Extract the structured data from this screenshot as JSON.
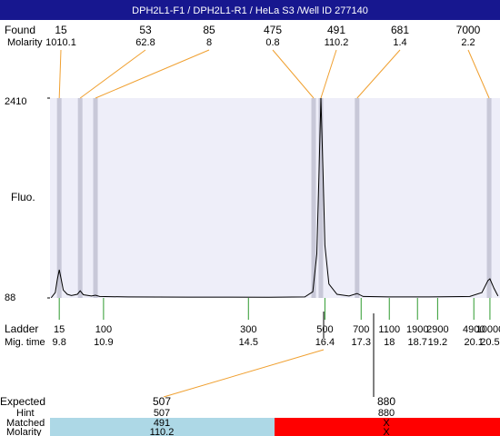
{
  "header": {
    "title": "DPH2L1-F1  / DPH2L1-R1  / HeLa S3 /Well ID 277140"
  },
  "found": {
    "label": "Found",
    "molarity_label": "Molarity",
    "peaks": [
      {
        "size": 15,
        "molarity": 1010.1,
        "migration_time": 9.8
      },
      {
        "size": 53,
        "molarity": 62.8,
        "migration_time": 10.32
      },
      {
        "size": 85,
        "molarity": 8,
        "migration_time": 10.7
      },
      {
        "size": 475,
        "molarity": 0.8,
        "migration_time": 16.12
      },
      {
        "size": 491,
        "molarity": 110.2,
        "migration_time": 16.3
      },
      {
        "size": 681,
        "molarity": 1.4,
        "migration_time": 17.2
      },
      {
        "size": 7000,
        "molarity": 2.2,
        "migration_time": 20.48
      }
    ]
  },
  "chart_data": {
    "type": "line",
    "ylabel": "Fluo.",
    "color": "#000000",
    "x": [
      9.6,
      9.7,
      9.75,
      9.8,
      9.85,
      9.9,
      10.0,
      10.1,
      10.25,
      10.32,
      10.4,
      10.6,
      10.7,
      10.8,
      11.5,
      13,
      15,
      15.9,
      16.1,
      16.2,
      16.25,
      16.3,
      16.35,
      16.4,
      16.5,
      16.7,
      17.0,
      17.2,
      17.35,
      18,
      19,
      20,
      20.3,
      20.45,
      20.5,
      20.6,
      20.7
    ],
    "values": [
      90,
      150,
      300,
      415,
      300,
      180,
      130,
      115,
      130,
      170,
      125,
      110,
      120,
      105,
      100,
      98,
      96,
      100,
      160,
      600,
      1500,
      2410,
      1600,
      700,
      250,
      130,
      110,
      140,
      105,
      100,
      100,
      105,
      150,
      290,
      310,
      200,
      110
    ],
    "xlim": [
      9.57,
      20.75
    ],
    "ylim": [
      88,
      2410
    ],
    "yticks": [
      88,
      2410
    ]
  },
  "ladder": {
    "label": "Ladder",
    "time_label": "Mig. time",
    "entries": [
      {
        "size": 15,
        "time": 9.8
      },
      {
        "size": 100,
        "time": 10.9
      },
      {
        "size": 300,
        "time": 14.5
      },
      {
        "size": 500,
        "time": 16.4
      },
      {
        "size": 700,
        "time": 17.3
      },
      {
        "size": 1100,
        "time": 18
      },
      {
        "size": 1900,
        "time": 18.7
      },
      {
        "size": 2900,
        "time": 19.2
      },
      {
        "size": 4900,
        "time": 20.1
      },
      {
        "size": 10000,
        "time": 20.5
      }
    ]
  },
  "expected": {
    "label": "Expected",
    "hint_label": "Hint",
    "matched_label": "Matched",
    "molarity_label": "Molarity",
    "columns": [
      {
        "expected": 507,
        "hint": 507,
        "matched": 491,
        "molarity": 110.2
      },
      {
        "expected": 880,
        "hint": 880,
        "matched": "X",
        "molarity": "X"
      }
    ]
  }
}
